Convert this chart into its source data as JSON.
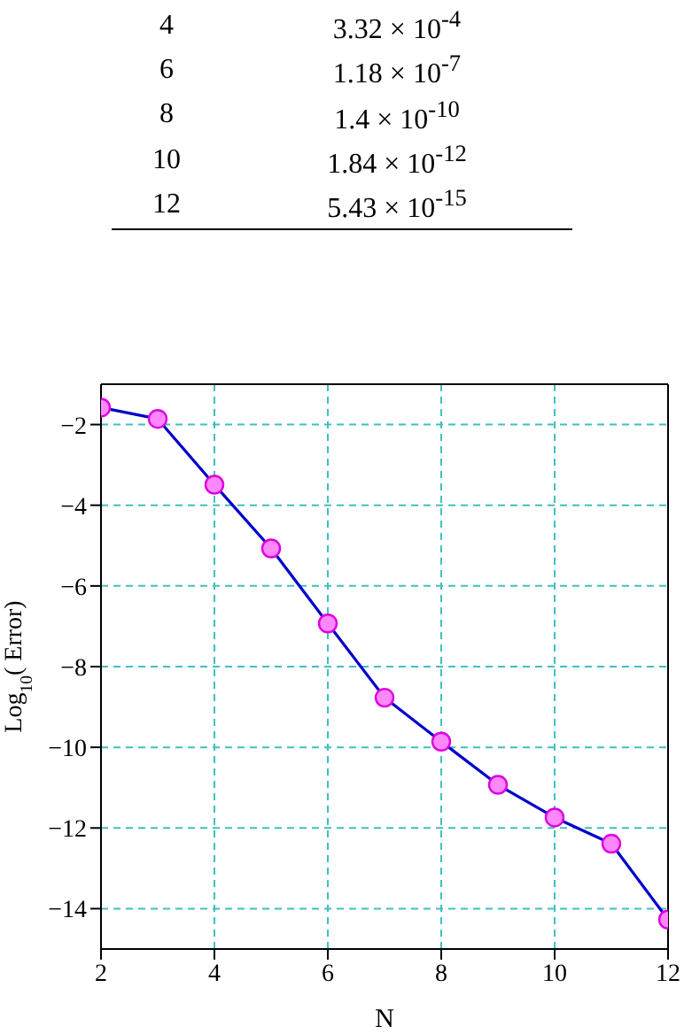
{
  "chart_data": {
    "type": "line",
    "xlabel": "N",
    "ylabel": "Log$_{10}$( Error)",
    "x": [
      2,
      3,
      4,
      5,
      6,
      7,
      8,
      9,
      10,
      11,
      12
    ],
    "series": [
      {
        "color": "#0000cc",
        "values": [
          -1.58,
          -1.86,
          -3.49,
          -5.07,
          -6.93,
          -8.77,
          -9.86,
          -10.93,
          -11.74,
          -12.39,
          -14.27
        ]
      }
    ],
    "xlim": [
      2,
      12
    ],
    "xticks": [
      2,
      4,
      6,
      8,
      10,
      12
    ],
    "ylim": [
      -15,
      -1
    ],
    "yticks": [
      -14,
      -12,
      -10,
      -8,
      -6,
      -4,
      -2
    ],
    "grid": true,
    "marker": "circle",
    "line_style": "solid",
    "annotations": [
      "4 3.32 × 10$^{-4}$",
      "6 1.18 × 10$^{-7}$",
      "8 1.4 × 10$^{-10}$",
      "10 1.84 × 10$^{-12}$",
      "12 5.43 × 10$^{-15}$"
    ]
  }
}
